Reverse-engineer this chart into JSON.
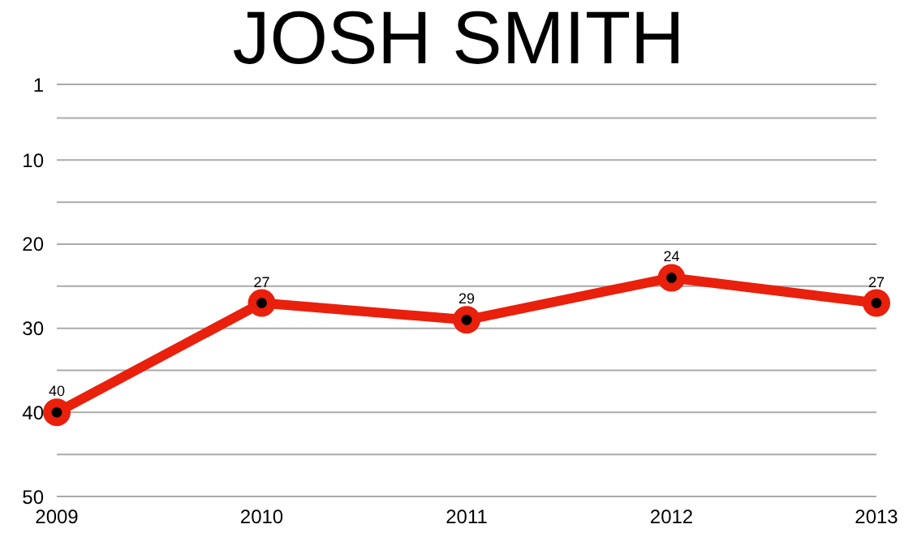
{
  "chart_data": {
    "type": "line",
    "title": "JOSH SMITH",
    "categories": [
      "2009",
      "2010",
      "2011",
      "2012",
      "2013"
    ],
    "series": [
      {
        "color": "#e8200c",
        "values": [
          40,
          27,
          29,
          24,
          27
        ]
      }
    ],
    "ylim": [
      50,
      1
    ],
    "yticks": [
      1,
      {
        "value": 5,
        "label": null
      },
      10,
      {
        "value": 15,
        "label": null
      },
      20,
      {
        "value": 25,
        "label": null
      },
      30,
      {
        "value": 35,
        "label": null
      },
      40,
      {
        "value": 45,
        "label": null
      },
      50
    ],
    "grid": "y",
    "marker": "circle",
    "line_style": "solid",
    "data_labels": true,
    "legend": false
  }
}
